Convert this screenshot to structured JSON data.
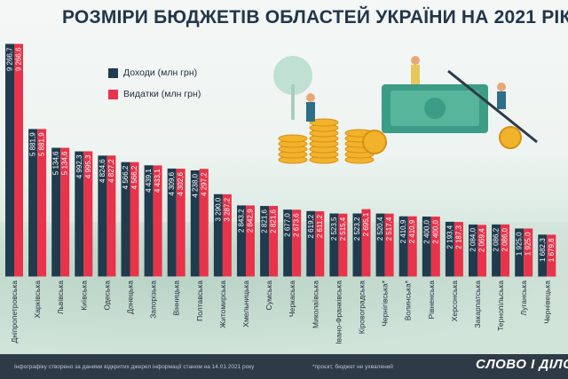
{
  "title": "РОЗМІРИ БЮДЖЕТІВ ОБЛАСТЕЙ УКРАЇНИ НА 2021 РІК",
  "legend": [
    {
      "label": "Доходи (млн грн)",
      "color": "#1f3b4d"
    },
    {
      "label": "Видатки (млн грн)",
      "color": "#e8334a"
    }
  ],
  "colors": {
    "income": "#1f3b4d",
    "expense": "#e8334a",
    "footer": "#2f3a47"
  },
  "footer": {
    "source": "Інфографіку створено за даними відкритих джерел інформації станом на 14.01.2021 року",
    "note": "*проєкт, бюджет не ухвалений",
    "logo": "СЛОВО І ДІЛО"
  },
  "chart_data": {
    "type": "bar",
    "title": "РОЗМІРИ БЮДЖЕТІВ ОБЛАСТЕЙ УКРАЇНИ НА 2021 РІК",
    "xlabel": "",
    "ylabel": "",
    "ylim": [
      0,
      9600
    ],
    "grid": false,
    "legend_position": "top-left",
    "categories": [
      "Дніпропетровська",
      "Харківська",
      "Львівська",
      "Київська",
      "Одеська",
      "Донецька",
      "Запорізька",
      "Вінницька",
      "Полтавська",
      "Житомирська",
      "Хмельницька",
      "Сумська",
      "Черкаська",
      "Миколаївська",
      "Івано-Франківська",
      "Кіровоградська",
      "Чернігівська*",
      "Волинська*",
      "Рівненська",
      "Херсонська",
      "Закарпатська",
      "Тернопільська",
      "Луганська",
      "Чернівецька"
    ],
    "series": [
      {
        "name": "Доходи (млн грн)",
        "values": [
          9266.7,
          5881.9,
          5134.6,
          4992.3,
          4824.6,
          4566.2,
          4439.1,
          4309.6,
          4238.0,
          3290.0,
          2843.2,
          2821.6,
          2677.0,
          2619.2,
          2523.5,
          2523.2,
          2520.4,
          2410.9,
          2400.0,
          2193.4,
          2084.0,
          2086.2,
          1925.0,
          1682.3
        ]
      },
      {
        "name": "Видатки (млн грн)",
        "values": [
          9266.6,
          5881.9,
          5134.6,
          4995.3,
          4827.2,
          4566.2,
          4433.1,
          4302.6,
          4297.2,
          3287.2,
          2842.9,
          2821.6,
          2673.6,
          2611.2,
          2515.4,
          2695.1,
          2517.4,
          2410.9,
          2400.0,
          2187.3,
          2069.4,
          2086.0,
          1925.0,
          1679.8
        ]
      }
    ],
    "value_labels": {
      "income": [
        "9 266,7",
        "5 881,9",
        "5 134,6",
        "4 992,3",
        "4 824,6",
        "4 566,2",
        "4 439,1",
        "4 309,6",
        "4 238,0",
        "3 290,0",
        "2 843,2",
        "2 821,6",
        "2 677,0",
        "2 619,2",
        "2 523,5",
        "2 523,2",
        "2 520,4",
        "2 410,9",
        "2 400,0",
        "2 193,4",
        "2 084,0",
        "2 086,2",
        "1 925,0",
        "1 682,3"
      ],
      "expense": [
        "9 266,6",
        "5 881,9",
        "5 134,6",
        "4 995,3",
        "4 827,2",
        "4 566,2",
        "4 433,1",
        "4 302,6",
        "4 297,2",
        "3 287,2",
        "2 842,9",
        "2 821,6",
        "2 673,6",
        "2 611,2",
        "2 515,4",
        "2 695,1",
        "2 517,4",
        "2 410,9",
        "2 400,0",
        "2 187,3",
        "2 069,4",
        "2 086,0",
        "1 925,0",
        "1 679,8"
      ]
    }
  }
}
